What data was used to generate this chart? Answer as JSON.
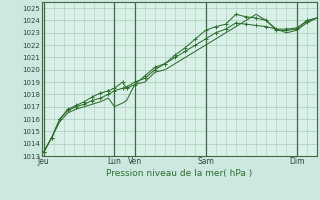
{
  "xlabel": "Pression niveau de la mer( hPa )",
  "bg_color": "#cce8e0",
  "plot_bg_color": "#d8f0e8",
  "grid_color": "#aaccbb",
  "vline_color": "#446644",
  "line_color": "#2d6e2d",
  "ylim": [
    1013,
    1025.5
  ],
  "yticks": [
    1013,
    1014,
    1015,
    1016,
    1017,
    1018,
    1019,
    1020,
    1021,
    1022,
    1023,
    1024,
    1025
  ],
  "x_day_labels": [
    "Jeu",
    "Lun",
    "Ven",
    "Sam",
    "Dim"
  ],
  "x_day_positions": [
    0.0,
    3.5,
    4.5,
    8.0,
    12.5
  ],
  "xlim": [
    -0.1,
    13.5
  ],
  "series1_x": [
    0,
    0.4,
    0.8,
    1.2,
    1.6,
    2.0,
    2.4,
    2.8,
    3.2,
    3.5,
    3.9,
    4.1,
    4.5,
    5.0,
    5.5,
    6.0,
    6.5,
    7.0,
    7.5,
    8.0,
    8.5,
    9.0,
    9.5,
    10.0,
    10.5,
    11.0,
    11.5,
    12.0,
    12.5,
    13.0,
    13.5
  ],
  "series1_y": [
    1013.3,
    1014.5,
    1016.0,
    1016.7,
    1017.0,
    1017.2,
    1017.5,
    1017.7,
    1018.0,
    1018.3,
    1018.5,
    1018.6,
    1019.0,
    1019.3,
    1020.0,
    1020.5,
    1021.2,
    1021.8,
    1022.5,
    1023.2,
    1023.5,
    1023.7,
    1024.5,
    1024.3,
    1024.2,
    1024.0,
    1023.2,
    1023.2,
    1023.3,
    1024.0,
    1024.2
  ],
  "series2_x": [
    0,
    0.4,
    0.8,
    1.2,
    1.6,
    2.0,
    2.4,
    2.8,
    3.2,
    3.5,
    3.9,
    4.1,
    4.5,
    5.0,
    5.5,
    6.0,
    6.5,
    7.0,
    7.5,
    8.0,
    8.5,
    9.0,
    9.5,
    10.0,
    10.5,
    11.0,
    11.5,
    12.0,
    12.5,
    13.0,
    13.5
  ],
  "series2_y": [
    1013.3,
    1014.5,
    1016.0,
    1016.8,
    1017.1,
    1017.4,
    1017.8,
    1018.1,
    1018.3,
    1018.5,
    1019.0,
    1018.5,
    1018.8,
    1019.5,
    1020.2,
    1020.5,
    1021.0,
    1021.5,
    1022.0,
    1022.5,
    1023.0,
    1023.3,
    1023.8,
    1023.7,
    1023.6,
    1023.5,
    1023.3,
    1023.3,
    1023.4,
    1023.9,
    1024.2
  ],
  "series3_x": [
    0,
    0.4,
    0.8,
    1.2,
    1.6,
    2.0,
    2.4,
    2.8,
    3.2,
    3.5,
    3.9,
    4.1,
    4.5,
    5.0,
    5.5,
    6.0,
    6.5,
    7.0,
    7.5,
    8.0,
    8.5,
    9.0,
    9.5,
    10.0,
    10.5,
    11.0,
    11.5,
    12.0,
    12.5,
    13.0,
    13.5
  ],
  "series3_y": [
    1013.3,
    1014.5,
    1015.8,
    1016.5,
    1016.8,
    1017.0,
    1017.2,
    1017.4,
    1017.7,
    1017.0,
    1017.3,
    1017.5,
    1018.8,
    1019.0,
    1019.8,
    1020.0,
    1020.5,
    1021.0,
    1021.5,
    1022.0,
    1022.5,
    1023.0,
    1023.5,
    1024.0,
    1024.5,
    1024.0,
    1023.3,
    1023.0,
    1023.2,
    1023.8,
    1024.2
  ]
}
